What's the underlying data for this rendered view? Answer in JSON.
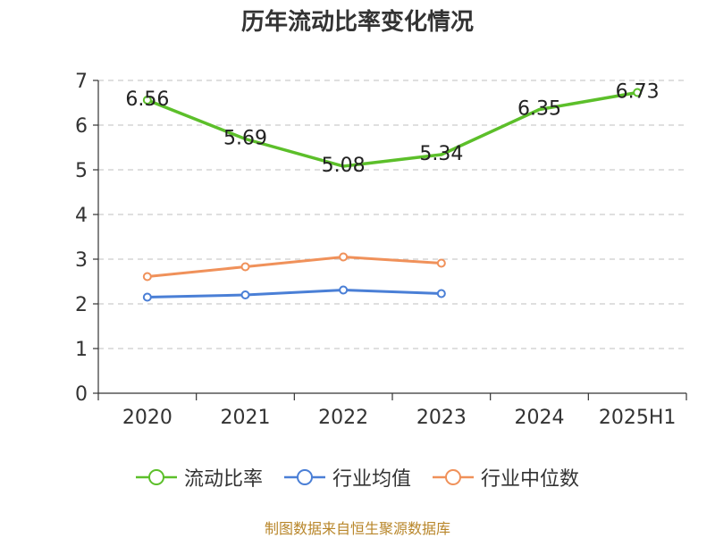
{
  "title": "历年流动比率变化情况",
  "source": "制图数据来自恒生聚源数据库",
  "chart_data": {
    "type": "line",
    "title": "历年流动比率变化情况",
    "categories": [
      "2020",
      "2021",
      "2022",
      "2023",
      "2024",
      "2025H1"
    ],
    "ylim": [
      0,
      7
    ],
    "yticks": [
      0,
      1,
      2,
      3,
      4,
      5,
      6,
      7
    ],
    "grid": true,
    "legend_position": "bottom",
    "series": [
      {
        "name": "流动比率",
        "color": "#5cbf2a",
        "values": [
          6.56,
          5.69,
          5.08,
          5.34,
          6.35,
          6.73
        ],
        "labels": [
          "6.56",
          "5.69",
          "5.08",
          "5.34",
          "6.35",
          "6.73"
        ],
        "show_labels": true,
        "markers_on": [
          0,
          5
        ]
      },
      {
        "name": "行业均值",
        "color": "#4a7fd6",
        "values": [
          2.15,
          2.2,
          2.31,
          2.23,
          null,
          null
        ],
        "show_labels": false
      },
      {
        "name": "行业中位数",
        "color": "#f0915a",
        "values": [
          2.61,
          2.83,
          3.05,
          2.91,
          null,
          null
        ],
        "show_labels": false
      }
    ]
  }
}
